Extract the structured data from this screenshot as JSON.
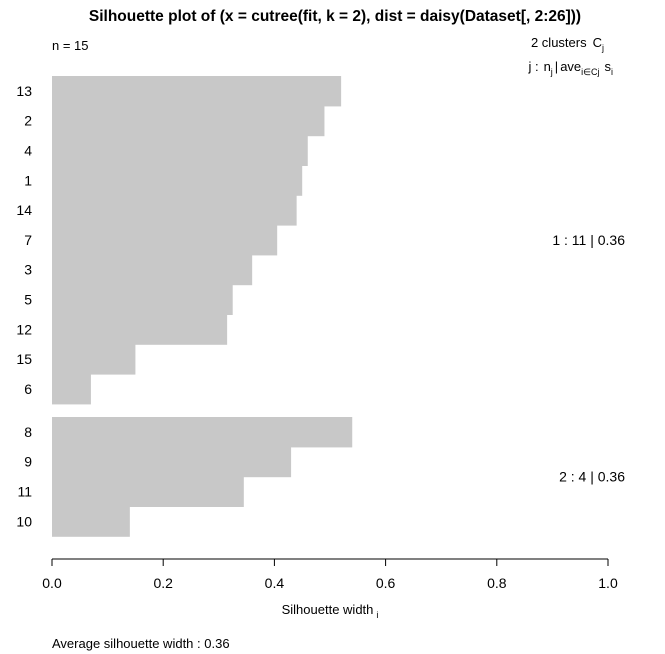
{
  "chart_data": {
    "type": "bar",
    "orientation": "horizontal",
    "title": "Silhouette plot of (x = cutree(fit, k = 2), dist = daisy(Dataset[, 2:26]))",
    "n_label": "n = 15",
    "legend": {
      "header": "2 clusters",
      "header_sym": "C",
      "header_sub": "j",
      "col_header": {
        "j": "j :",
        "n": "n",
        "n_sub": "j",
        "bar": "|",
        "ave": "ave",
        "ave_sub": "i∈Cj",
        "s": "s",
        "s_sub": "i"
      }
    },
    "clusters": [
      {
        "id": 1,
        "size": 11,
        "avg": "0.36",
        "label": "1 :  11  |  0.36",
        "obs": [
          "13",
          "2",
          "4",
          "1",
          "14",
          "7",
          "3",
          "5",
          "12",
          "15",
          "6"
        ],
        "values": [
          0.52,
          0.49,
          0.46,
          0.45,
          0.44,
          0.405,
          0.36,
          0.325,
          0.315,
          0.15,
          0.07
        ]
      },
      {
        "id": 2,
        "size": 4,
        "avg": "0.36",
        "label": "2 :  4  |  0.36",
        "obs": [
          "8",
          "9",
          "11",
          "10"
        ],
        "values": [
          0.54,
          0.43,
          0.345,
          0.14
        ]
      }
    ],
    "xlim": [
      0,
      1
    ],
    "xticks": [
      "0.0",
      "0.2",
      "0.4",
      "0.6",
      "0.8",
      "1.0"
    ],
    "xlabel": "Silhouette width",
    "xlabel_sub": "i",
    "footer": "Average silhouette width :  0.36",
    "bar_color": "#c8c8c8"
  }
}
